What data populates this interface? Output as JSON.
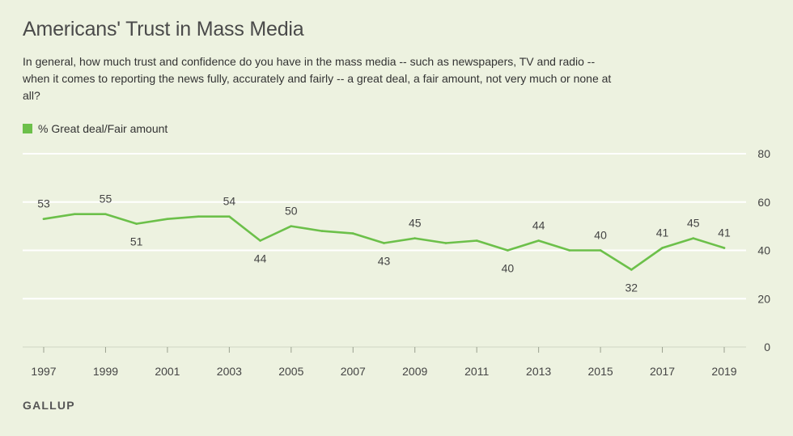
{
  "header": {
    "title": "Americans' Trust in Mass Media",
    "subtitle": "In general, how much trust and confidence do you have in the mass media -- such as newspapers, TV and radio -- when it comes to reporting the news fully, accurately and fairly -- a great deal, a fair amount, not very much or none at all?"
  },
  "source": "GALLUP",
  "colors": {
    "line": "#6cc04a",
    "grid": "#ffffff",
    "background": "#edf2e0"
  },
  "chart_data": {
    "type": "line",
    "title": "Americans' Trust in Mass Media",
    "xlabel": "",
    "ylabel": "",
    "ylim": [
      0,
      80
    ],
    "xlim": [
      1997,
      2019
    ],
    "yticks": [
      0,
      20,
      40,
      60,
      80
    ],
    "xticks": [
      1997,
      1999,
      2001,
      2003,
      2005,
      2007,
      2009,
      2011,
      2013,
      2015,
      2017,
      2019
    ],
    "grid": true,
    "legend_position": "top-left",
    "series": [
      {
        "name": "% Great deal/Fair amount",
        "x": [
          1997,
          1998,
          1999,
          2000,
          2001,
          2002,
          2003,
          2004,
          2005,
          2006,
          2007,
          2008,
          2009,
          2010,
          2011,
          2012,
          2013,
          2014,
          2015,
          2016,
          2017,
          2018,
          2019
        ],
        "values": [
          53,
          55,
          55,
          51,
          53,
          54,
          54,
          44,
          50,
          48,
          47,
          43,
          45,
          43,
          44,
          40,
          44,
          40,
          40,
          32,
          41,
          45,
          41
        ]
      }
    ],
    "data_labels": [
      {
        "x": 1997,
        "text": "53",
        "pos": "above"
      },
      {
        "x": 1999,
        "text": "55",
        "pos": "above"
      },
      {
        "x": 2000,
        "text": "51",
        "pos": "below"
      },
      {
        "x": 2003,
        "text": "54",
        "pos": "above"
      },
      {
        "x": 2004,
        "text": "44",
        "pos": "below"
      },
      {
        "x": 2005,
        "text": "50",
        "pos": "above"
      },
      {
        "x": 2008,
        "text": "43",
        "pos": "below"
      },
      {
        "x": 2009,
        "text": "45",
        "pos": "above"
      },
      {
        "x": 2012,
        "text": "40",
        "pos": "below"
      },
      {
        "x": 2013,
        "text": "44",
        "pos": "above"
      },
      {
        "x": 2015,
        "text": "40",
        "pos": "above"
      },
      {
        "x": 2016,
        "text": "32",
        "pos": "below"
      },
      {
        "x": 2017,
        "text": "41",
        "pos": "above"
      },
      {
        "x": 2018,
        "text": "45",
        "pos": "above"
      },
      {
        "x": 2019,
        "text": "41",
        "pos": "above"
      }
    ]
  }
}
